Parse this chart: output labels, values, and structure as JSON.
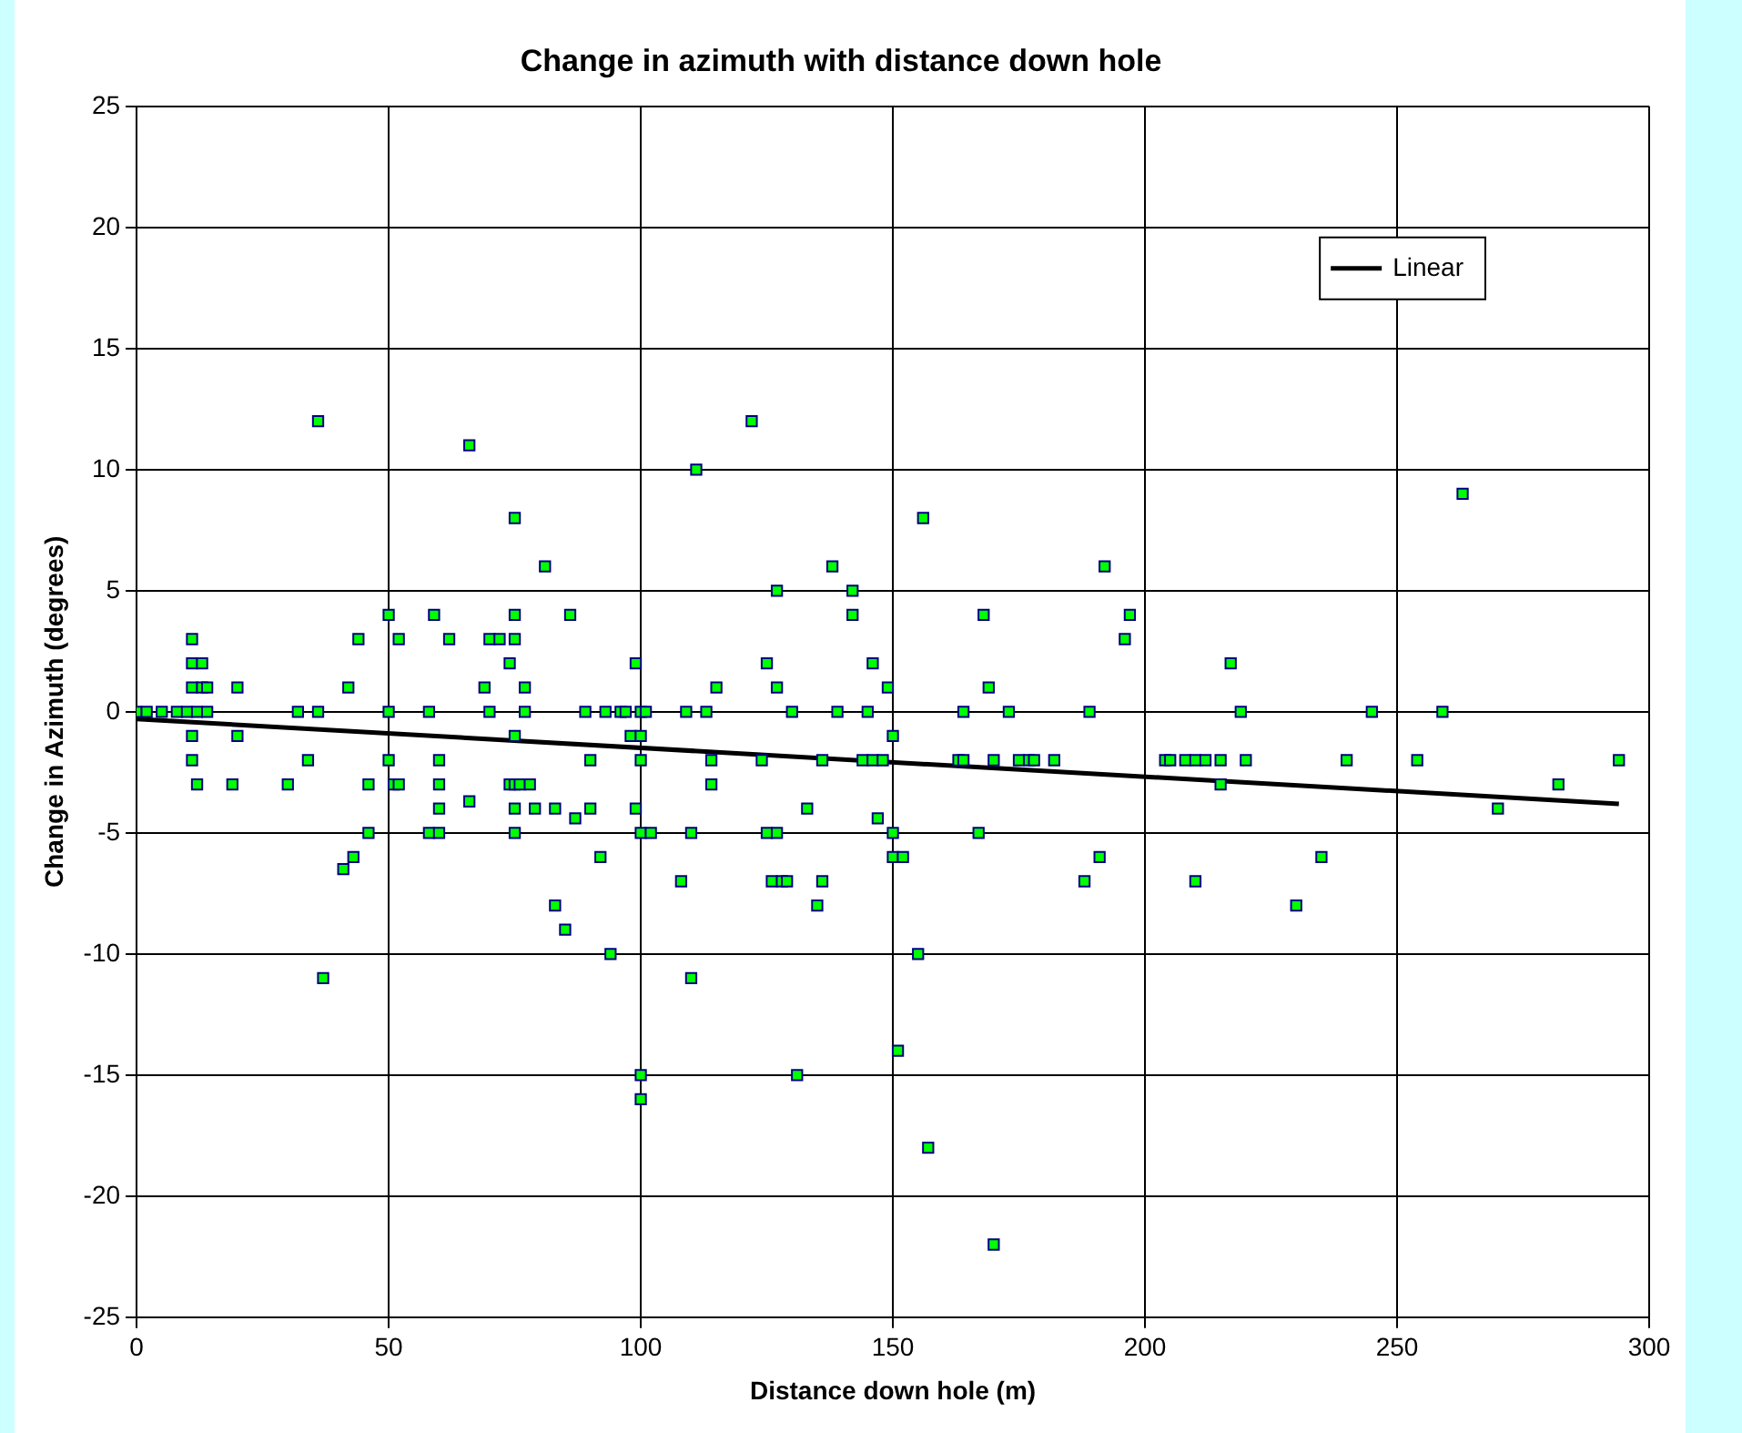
{
  "chart_data": {
    "type": "scatter",
    "title": "Change in azimuth with distance down hole",
    "xlabel": "Distance down hole (m)",
    "ylabel": "Change in Azimuth (degrees)",
    "xlim": [
      0,
      300
    ],
    "xticks": [
      0,
      50,
      100,
      150,
      200,
      250,
      300
    ],
    "ylim": [
      -25,
      25
    ],
    "yticks": [
      -25,
      -20,
      -15,
      -10,
      -5,
      0,
      5,
      10,
      15,
      20,
      25
    ],
    "grid": true,
    "legend": "top right",
    "marker": "square",
    "series": [
      {
        "color": "#00ff00",
        "x": [
          0,
          2,
          5,
          8,
          10,
          12,
          14,
          11,
          11,
          13,
          11,
          13,
          14,
          11,
          11,
          12,
          20,
          20,
          19,
          30,
          32,
          34,
          36,
          36,
          37,
          41,
          42,
          43,
          44,
          46,
          46,
          50,
          50,
          50,
          51,
          52,
          52,
          58,
          58,
          59,
          60,
          60,
          60,
          60,
          62,
          66,
          66,
          69,
          70,
          70,
          72,
          74,
          74,
          75,
          75,
          75,
          75,
          75,
          75,
          75,
          76,
          77,
          77,
          78,
          79,
          81,
          83,
          83,
          85,
          86,
          87,
          89,
          90,
          90,
          92,
          93,
          94,
          96,
          97,
          98,
          99,
          99,
          100,
          100,
          100,
          100,
          100,
          100,
          101,
          102,
          108,
          109,
          110,
          110,
          111,
          113,
          114,
          114,
          115,
          122,
          124,
          125,
          125,
          126,
          127,
          127,
          127,
          128,
          129,
          130,
          131,
          133,
          135,
          136,
          136,
          138,
          139,
          142,
          142,
          144,
          145,
          146,
          146,
          147,
          148,
          149,
          150,
          150,
          150,
          151,
          152,
          155,
          156,
          157,
          163,
          164,
          164,
          167,
          168,
          169,
          170,
          170,
          173,
          175,
          177,
          178,
          182,
          188,
          189,
          191,
          192,
          196,
          197,
          204,
          205,
          208,
          210,
          210,
          212,
          215,
          215,
          217,
          219,
          220,
          230,
          235,
          240,
          245,
          254,
          259,
          263,
          270,
          282,
          294
        ],
        "values": [
          0,
          0,
          0,
          0,
          0,
          0,
          0,
          3,
          2,
          2,
          1,
          1,
          1,
          -1,
          -2,
          -3,
          1,
          -1,
          -3,
          -3,
          0,
          -2,
          12,
          0,
          -11,
          -6.5,
          1,
          -6,
          3,
          -3,
          -5,
          4,
          0,
          -2,
          -3,
          3,
          -3,
          -5,
          0,
          4,
          -4,
          -3,
          -2,
          -5,
          3,
          11,
          -3.7,
          1,
          3,
          0,
          3,
          2,
          -3,
          8,
          4,
          3,
          -1,
          -3,
          -4,
          -5,
          -3,
          1,
          0,
          -3,
          -4,
          6,
          -8,
          -4,
          -9,
          4,
          -4.4,
          0,
          -2,
          -4,
          -6,
          0,
          -10,
          0,
          0,
          -1,
          2,
          -4,
          0,
          -1,
          -2,
          -5,
          -15,
          -16,
          0,
          -5,
          -7,
          0,
          -5,
          -11,
          10,
          0,
          -2,
          -3,
          1,
          12,
          -2,
          2,
          -5,
          -7,
          5,
          1,
          -5,
          -7,
          -7,
          0,
          -15,
          -4,
          -8,
          -7,
          -2,
          6,
          0,
          4,
          5,
          -2,
          0,
          2,
          -2,
          -4.4,
          -2,
          1,
          -5,
          -1,
          -6,
          -14,
          -6,
          -10,
          8,
          -18,
          -2,
          0,
          -2,
          -5,
          4,
          1,
          -22,
          -2,
          0,
          -2,
          -2,
          -2,
          -2,
          -7,
          0,
          -6,
          6,
          3,
          4,
          -2,
          -2,
          -2,
          -2,
          -7,
          -2,
          -2,
          -3,
          2,
          0,
          -2,
          -8,
          -6,
          -2,
          0,
          -2,
          0,
          9,
          -4,
          -3,
          -2
        ]
      },
      {
        "type": "line",
        "marker": "none",
        "name": "Linear",
        "color": "#000000",
        "x": [
          0,
          294
        ],
        "values": [
          -0.3,
          -3.8
        ]
      }
    ]
  }
}
